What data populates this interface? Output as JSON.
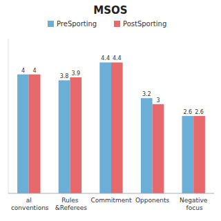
{
  "chart_data": {
    "type": "bar",
    "title": "MSOS",
    "categories": [
      "al conventions",
      "Rules &Referees",
      "Commitment",
      "Opponents",
      "Negative focus"
    ],
    "series": [
      {
        "name": "PreSporting",
        "color": "#6baed6",
        "values": [
          4.0,
          3.8,
          4.4,
          3.2,
          2.6
        ]
      },
      {
        "name": "PostSporting",
        "color": "#e8696b",
        "values": [
          4.0,
          3.9,
          4.4,
          3.0,
          2.6
        ]
      }
    ],
    "ylim": [
      0,
      5.2
    ],
    "data_labels": true,
    "tick_labels": "x",
    "legend": "upper center",
    "grid": false
  }
}
